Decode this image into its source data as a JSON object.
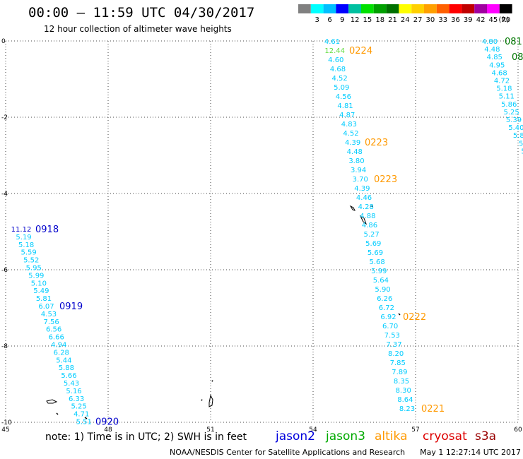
{
  "header": {
    "title": "00:00 – 11:59 UTC 04/30/2017",
    "subtitle": "12 hour collection of altimeter wave heights"
  },
  "legend": {
    "unit": "(ft)",
    "bins": [
      {
        "label": "",
        "color": "#808080"
      },
      {
        "label": "3",
        "color": "#00ffff"
      },
      {
        "label": "6",
        "color": "#00bfff"
      },
      {
        "label": "9",
        "color": "#0000ff"
      },
      {
        "label": "12",
        "color": "#00c0a0"
      },
      {
        "label": "15",
        "color": "#00e000"
      },
      {
        "label": "18",
        "color": "#00a000"
      },
      {
        "label": "21",
        "color": "#007000"
      },
      {
        "label": "24",
        "color": "#ffff00"
      },
      {
        "label": "27",
        "color": "#ffd000"
      },
      {
        "label": "30",
        "color": "#ffa000"
      },
      {
        "label": "33",
        "color": "#ff6000"
      },
      {
        "label": "36",
        "color": "#ff0000"
      },
      {
        "label": "39",
        "color": "#c00000"
      },
      {
        "label": "42",
        "color": "#a000a0"
      },
      {
        "label": "45",
        "color": "#ff00ff"
      },
      {
        "label": "70",
        "color": "#000000"
      }
    ]
  },
  "map": {
    "lon_ticks": [
      "45",
      "48",
      "51",
      "54",
      "57",
      "60"
    ],
    "lat_ticks": [
      "0",
      "-2",
      "-4",
      "-6",
      "-8",
      "-10"
    ],
    "tracks": [
      {
        "name": "track-west",
        "values": [
          "11.12",
          "5.19",
          "5.18",
          "5.59",
          "5.52",
          "5.95",
          "5.99",
          "5.10",
          "5.49",
          "5.81",
          "6.07",
          "4.53",
          "7.56",
          "6.56",
          "6.66",
          "4.94",
          "6.28",
          "5.44",
          "5.88",
          "5.66",
          "5.43",
          "5.16",
          "6.33",
          "5.25",
          "4.71",
          "5.51"
        ],
        "color": "#00ccff",
        "special": {
          "index": 0,
          "color": "#0000cc"
        },
        "times": [
          {
            "text": "0918",
            "at": 0
          },
          {
            "text": "0919",
            "at": 10
          },
          {
            "text": "0920",
            "at": 25
          }
        ],
        "time_color": "#0000cc"
      },
      {
        "name": "track-middle",
        "values": [
          "4.61",
          "12.44",
          "4.60",
          "4.68",
          "4.52",
          "5.09",
          "4.56",
          "4.81",
          "4.87",
          "4.83",
          "4.52",
          "4.39",
          "4.48",
          "3.80",
          "3.94",
          "3.70",
          "4.39",
          "4.46",
          "4.28",
          "4.88",
          "4.86",
          "5.27",
          "5.69",
          "5.69",
          "5.68",
          "5.99",
          "5.64",
          "5.90",
          "6.26",
          "6.72",
          "6.92",
          "6.70",
          "7.53",
          "7.37",
          "8.20",
          "7.85",
          "7.89",
          "8.35",
          "8.30",
          "8.64",
          "8.23"
        ],
        "color": "#00ccff",
        "special": {
          "index": 1,
          "color": "#66dd44"
        },
        "times": [
          {
            "text": "0224",
            "at": 1
          },
          {
            "text": "0223",
            "at": 11
          },
          {
            "text": "0223",
            "at": 15
          },
          {
            "text": "0222",
            "at": 30
          },
          {
            "text": "0221",
            "at": 40
          }
        ],
        "time_color": "#ff9900"
      },
      {
        "name": "track-east",
        "values": [
          "4.80",
          "4.48",
          "4.85",
          "4.95",
          "4.68",
          "4.72",
          "5.18",
          "5.11",
          "5.86",
          "5.25",
          "5.39",
          "5.40",
          "5.8",
          "5",
          "5",
          "5"
        ],
        "color": "#00ccff",
        "times": [
          {
            "text": "081",
            "at": 0
          },
          {
            "text": "08",
            "at": 2
          }
        ],
        "time_color": "#007700"
      }
    ]
  },
  "satellites": [
    {
      "name": "jason2",
      "color": "#0000dd"
    },
    {
      "name": "jason3",
      "color": "#00aa00"
    },
    {
      "name": "altika",
      "color": "#ff9900"
    },
    {
      "name": "cryosat",
      "color": "#dd0000"
    },
    {
      "name": "s3a",
      "color": "#990000"
    }
  ],
  "footer": {
    "note": "note: 1) Time is in UTC; 2) SWH is in feet",
    "credit": "NOAA/NESDIS Center for Satellite Applications and Research",
    "timestamp": "May  1 12:27:14 UTC 2017"
  }
}
